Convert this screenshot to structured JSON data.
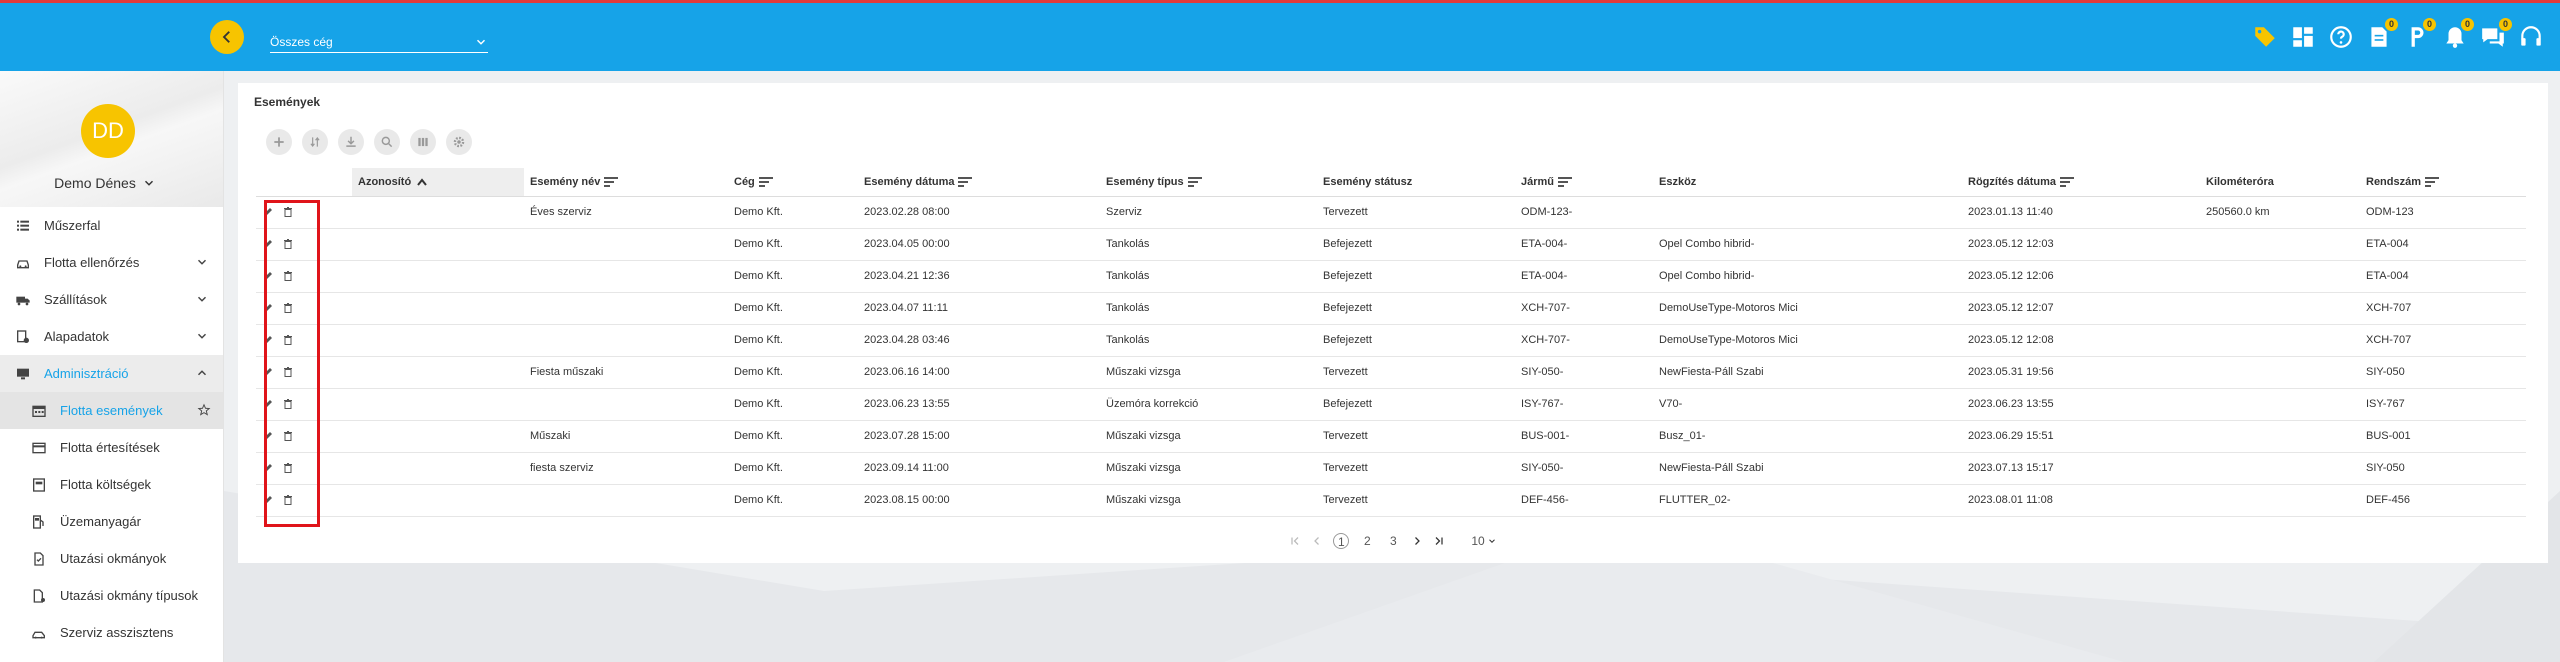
{
  "topbar": {
    "company_select": "Összes cég",
    "icons": [
      {
        "name": "tag-icon",
        "badge": ""
      },
      {
        "name": "dashboard-icon",
        "badge": ""
      },
      {
        "name": "help-icon",
        "badge": ""
      },
      {
        "name": "documents-icon",
        "badge": "0"
      },
      {
        "name": "parking-icon",
        "badge": "0"
      },
      {
        "name": "notifications-icon",
        "badge": "0"
      },
      {
        "name": "chat-icon",
        "badge": "0"
      },
      {
        "name": "headset-icon",
        "badge": ""
      }
    ]
  },
  "sidebar": {
    "avatar_initials": "DD",
    "username": "Demo Dénes",
    "items": [
      {
        "label": "Műszerfal",
        "icon": "list-icon"
      },
      {
        "label": "Flotta ellenőrzés",
        "icon": "car-icon"
      },
      {
        "label": "Szállítások",
        "icon": "truck-icon"
      },
      {
        "label": "Alapadatok",
        "icon": "data-icon"
      },
      {
        "label": "Adminisztráció",
        "icon": "monitor-icon"
      },
      {
        "label": "Flotta események",
        "icon": "calendar-icon"
      },
      {
        "label": "Flotta értesítések",
        "icon": "card-icon"
      },
      {
        "label": "Flotta költségek",
        "icon": "cost-icon"
      },
      {
        "label": "Üzemanyagár",
        "icon": "fuel-icon"
      },
      {
        "label": "Utazási okmányok",
        "icon": "document-icon"
      },
      {
        "label": "Utazási okmány típusok",
        "icon": "document-type-icon"
      },
      {
        "label": "Szerviz asszisztens",
        "icon": "service-icon"
      }
    ]
  },
  "main": {
    "title": "Események",
    "columns": [
      "",
      "Azonosító",
      "Esemény név",
      "Cég",
      "Esemény dátuma",
      "Esemény típus",
      "Esemény státusz",
      "Jármű",
      "Eszköz",
      "Rögzítés dátuma",
      "Kilométeróra",
      "Rendszám"
    ],
    "rows": [
      [
        "",
        "Éves szerviz",
        "Demo Kft.",
        "2023.02.28 08:00",
        "Szerviz",
        "Tervezett",
        "ODM-123-",
        "",
        "2023.01.13 11:40",
        "250560.0 km",
        "ODM-123"
      ],
      [
        "",
        "",
        "Demo Kft.",
        "2023.04.05 00:00",
        "Tankolás",
        "Befejezett",
        "ETA-004-",
        "Opel Combo hibrid-",
        "2023.05.12 12:03",
        "",
        "ETA-004"
      ],
      [
        "",
        "",
        "Demo Kft.",
        "2023.04.21 12:36",
        "Tankolás",
        "Befejezett",
        "ETA-004-",
        "Opel Combo hibrid-",
        "2023.05.12 12:06",
        "",
        "ETA-004"
      ],
      [
        "",
        "",
        "Demo Kft.",
        "2023.04.07 11:11",
        "Tankolás",
        "Befejezett",
        "XCH-707-",
        "DemoUseType-Motoros Mici",
        "2023.05.12 12:07",
        "",
        "XCH-707"
      ],
      [
        "",
        "",
        "Demo Kft.",
        "2023.04.28 03:46",
        "Tankolás",
        "Befejezett",
        "XCH-707-",
        "DemoUseType-Motoros Mici",
        "2023.05.12 12:08",
        "",
        "XCH-707"
      ],
      [
        "",
        "Fiesta műszaki",
        "Demo Kft.",
        "2023.06.16 14:00",
        "Műszaki vizsga",
        "Tervezett",
        "SIY-050-",
        "NewFiesta-Páll Szabi",
        "2023.05.31 19:56",
        "",
        "SIY-050"
      ],
      [
        "",
        "",
        "Demo Kft.",
        "2023.06.23 13:55",
        "Üzemóra korrekció",
        "Befejezett",
        "ISY-767-",
        "V70-",
        "2023.06.23 13:55",
        "",
        "ISY-767"
      ],
      [
        "",
        "Műszaki",
        "Demo Kft.",
        "2023.07.28 15:00",
        "Műszaki vizsga",
        "Tervezett",
        "BUS-001-",
        "Busz_01-",
        "2023.06.29 15:51",
        "",
        "BUS-001"
      ],
      [
        "",
        "fiesta szerviz",
        "Demo Kft.",
        "2023.09.14 11:00",
        "Műszaki vizsga",
        "Tervezett",
        "SIY-050-",
        "NewFiesta-Páll Szabi",
        "2023.07.13 15:17",
        "",
        "SIY-050"
      ],
      [
        "",
        "",
        "Demo Kft.",
        "2023.08.15 00:00",
        "Műszaki vizsga",
        "Tervezett",
        "DEF-456-",
        "FLUTTER_02-",
        "2023.08.01 11:08",
        "",
        "DEF-456"
      ]
    ],
    "pagination": {
      "pages": [
        "1",
        "2",
        "3"
      ],
      "current": "1",
      "page_size": "10"
    }
  },
  "colors": {
    "accent": "#16a3e8",
    "avatar": "#f7c400",
    "highlight": "#e0141a"
  }
}
